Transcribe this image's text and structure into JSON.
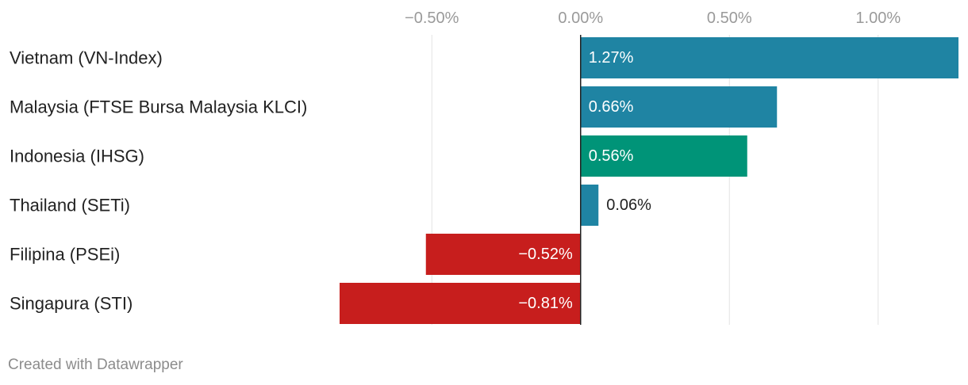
{
  "chart_data": {
    "type": "bar",
    "orientation": "horizontal",
    "categories": [
      "Vietnam (VN-Index)",
      "Malaysia (FTSE Bursa Malaysia KLCI)",
      "Indonesia (IHSG)",
      "Thailand (SETi)",
      "Filipina (PSEi)",
      "Singapura (STI)"
    ],
    "values": [
      1.27,
      0.66,
      0.56,
      0.06,
      -0.52,
      -0.81
    ],
    "value_labels": [
      "1.27%",
      "0.66%",
      "0.56%",
      "0.06%",
      "−0.52%",
      "−0.81%"
    ],
    "colors": [
      "#1f84a3",
      "#1f84a3",
      "#009478",
      "#1f84a3",
      "#c71e1d",
      "#c71e1d"
    ],
    "x_ticks": [
      -0.5,
      0,
      0.5,
      1.0
    ],
    "x_tick_labels": [
      "−0.50%",
      "0.00%",
      "0.50%",
      "1.00%"
    ],
    "xlim": [
      -0.81,
      1.27
    ],
    "axis_position": "top",
    "grid": true,
    "title": "",
    "xlabel": "",
    "ylabel": ""
  },
  "footer": {
    "credit": "Created with Datawrapper"
  }
}
